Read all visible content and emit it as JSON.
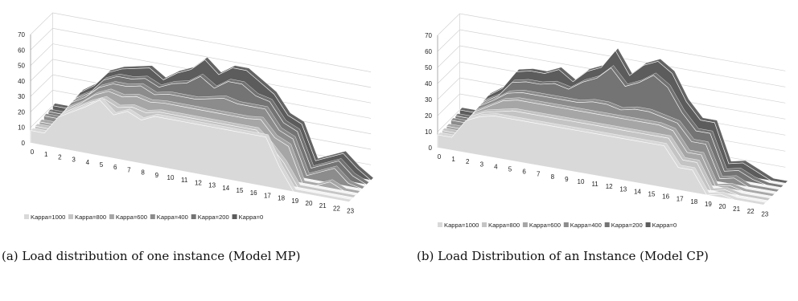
{
  "figure": {
    "captions": {
      "a": "(a) Load distribution of one instance (Model MP)",
      "b": "(b) Load Distribution of an Instance (Model CP)"
    }
  },
  "style": {
    "series_colors": [
      "#d9d9d9",
      "#c4c4c4",
      "#a6a6a6",
      "#8c8c8c",
      "#747474",
      "#5c5c5c"
    ],
    "axis_color": "#9a9a9a",
    "grid_color": "#d2d2d2"
  },
  "chart_data": [
    {
      "type": "area",
      "subtype": "3d-area",
      "title": "",
      "xlabel": "",
      "ylabel": "",
      "x": [
        0,
        1,
        2,
        3,
        4,
        5,
        6,
        7,
        8,
        9,
        10,
        11,
        12,
        13,
        14,
        15,
        16,
        17,
        18,
        19,
        20,
        21,
        22,
        23
      ],
      "ylim": [
        0,
        70
      ],
      "yticks": [
        0,
        10,
        20,
        30,
        40,
        50,
        60,
        70
      ],
      "grid": true,
      "legend_position": "bottom",
      "series": [
        {
          "name": "Kappa=1000",
          "values": [
            8,
            8,
            20,
            25,
            30,
            36,
            28,
            32,
            28,
            32,
            32,
            32,
            32,
            32,
            32,
            32,
            32,
            32,
            14,
            0,
            0,
            0,
            0,
            0
          ]
        },
        {
          "name": "Kappa=800",
          "values": [
            8,
            8,
            20,
            25,
            30,
            34,
            30,
            32,
            30,
            32,
            32,
            32,
            32,
            32,
            32,
            32,
            32,
            24,
            14,
            0,
            0,
            0,
            0,
            0
          ]
        },
        {
          "name": "Kappa=600",
          "values": [
            8,
            8,
            20,
            25,
            32,
            36,
            34,
            36,
            34,
            35,
            35,
            35,
            35,
            35,
            35,
            35,
            36,
            26,
            22,
            0,
            0,
            4,
            0,
            0
          ]
        },
        {
          "name": "Kappa=400",
          "values": [
            9,
            9,
            21,
            26,
            34,
            38,
            38,
            40,
            36,
            38,
            38,
            38,
            40,
            42,
            40,
            40,
            40,
            28,
            24,
            2,
            6,
            10,
            2,
            0
          ]
        },
        {
          "name": "Kappa=200",
          "values": [
            9,
            9,
            21,
            26,
            36,
            40,
            40,
            42,
            38,
            42,
            44,
            50,
            44,
            50,
            50,
            44,
            42,
            30,
            26,
            4,
            8,
            12,
            4,
            0
          ]
        },
        {
          "name": "Kappa=0",
          "values": [
            10,
            10,
            22,
            28,
            38,
            42,
            44,
            46,
            40,
            46,
            50,
            58,
            50,
            56,
            56,
            50,
            44,
            32,
            28,
            6,
            10,
            14,
            6,
            0
          ]
        }
      ]
    },
    {
      "type": "area",
      "subtype": "3d-area",
      "title": "",
      "xlabel": "",
      "ylabel": "",
      "x": [
        0,
        1,
        2,
        3,
        4,
        5,
        6,
        7,
        8,
        9,
        10,
        11,
        12,
        13,
        14,
        15,
        16,
        17,
        18,
        19,
        20,
        21,
        22,
        23
      ],
      "ylim": [
        0,
        70
      ],
      "yticks": [
        0,
        10,
        20,
        30,
        40,
        50,
        60,
        70
      ],
      "grid": true,
      "legend_position": "bottom",
      "series": [
        {
          "name": "Kappa=1000",
          "values": [
            8,
            8,
            20,
            24,
            26,
            26,
            26,
            26,
            26,
            26,
            26,
            26,
            26,
            26,
            26,
            26,
            26,
            14,
            14,
            0,
            2,
            0,
            0,
            0
          ]
        },
        {
          "name": "Kappa=800",
          "values": [
            8,
            8,
            20,
            24,
            26,
            28,
            28,
            28,
            28,
            28,
            28,
            28,
            28,
            28,
            28,
            28,
            28,
            16,
            16,
            0,
            2,
            0,
            0,
            0
          ]
        },
        {
          "name": "Kappa=600",
          "values": [
            8,
            8,
            20,
            25,
            30,
            32,
            32,
            32,
            32,
            32,
            32,
            32,
            32,
            32,
            32,
            32,
            30,
            18,
            18,
            0,
            2,
            0,
            0,
            0
          ]
        },
        {
          "name": "Kappa=400",
          "values": [
            9,
            9,
            21,
            26,
            32,
            34,
            34,
            34,
            34,
            34,
            36,
            36,
            34,
            36,
            36,
            34,
            32,
            22,
            22,
            2,
            4,
            0,
            0,
            0
          ]
        },
        {
          "name": "Kappa=200",
          "values": [
            9,
            9,
            21,
            26,
            36,
            38,
            38,
            40,
            38,
            44,
            48,
            56,
            46,
            50,
            56,
            50,
            36,
            26,
            26,
            4,
            6,
            2,
            0,
            0
          ]
        },
        {
          "name": "Kappa=0",
          "values": [
            10,
            10,
            22,
            28,
            40,
            42,
            42,
            46,
            40,
            48,
            52,
            64,
            50,
            58,
            62,
            56,
            40,
            30,
            30,
            6,
            8,
            4,
            0,
            0
          ]
        }
      ]
    }
  ]
}
